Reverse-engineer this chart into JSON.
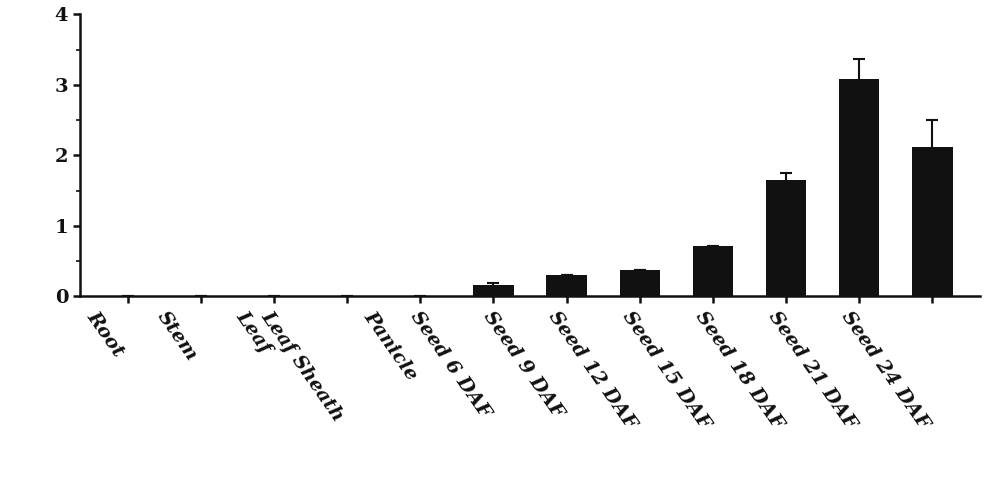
{
  "categories": [
    "Root",
    "Stem",
    "Leaf",
    "Leaf Sheath",
    "Panicle",
    "Seed 6 DAF",
    "Seed 9 DAF",
    "Seed 12 DAF",
    "Seed 15 DAF",
    "Seed 18 DAF",
    "Seed 21 DAF",
    "Seed 24 DAF"
  ],
  "values": [
    0.0,
    0.0,
    0.0,
    0.0,
    0.0,
    0.16,
    0.3,
    0.38,
    0.72,
    1.65,
    3.08,
    2.12
  ],
  "errors": [
    0.0,
    0.0,
    0.0,
    0.0,
    0.0,
    0.03,
    0.0,
    0.0,
    0.0,
    0.1,
    0.28,
    0.38
  ],
  "bar_color": "#111111",
  "error_color": "#111111",
  "ylim": [
    0,
    4
  ],
  "yticks": [
    0,
    1,
    2,
    3,
    4
  ],
  "background_color": "#ffffff",
  "bar_width": 0.55,
  "capsize": 4,
  "tick_labelsize": 14,
  "axis_linewidth": 1.8,
  "label_rotation": -55,
  "font_family": "serif",
  "font_style": "italic"
}
